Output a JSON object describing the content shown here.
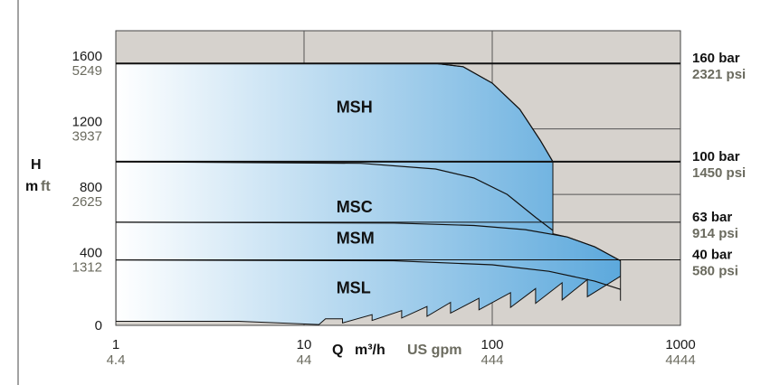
{
  "chart_data": {
    "type": "area",
    "x_scale": "log",
    "xlim": [
      1,
      1000
    ],
    "ylim": [
      0,
      1800
    ],
    "grid": true,
    "colors": {
      "plot_background": "#d6d2cd",
      "area_light": "#ffffff",
      "area_dark": "#5ba8dc",
      "line": "#111111"
    },
    "y_ticks": [
      {
        "m": "0",
        "ft": "",
        "value": 0
      },
      {
        "m": "400",
        "ft": "1312",
        "value": 400
      },
      {
        "m": "800",
        "ft": "2625",
        "value": 800
      },
      {
        "m": "1200",
        "ft": "3937",
        "value": 1200
      },
      {
        "m": "1600",
        "ft": "5249",
        "value": 1600
      }
    ],
    "x_ticks": [
      {
        "m3h": "1",
        "gpm": "4.4",
        "value": 1
      },
      {
        "m3h": "10",
        "gpm": "44",
        "value": 10
      },
      {
        "m3h": "100",
        "gpm": "444",
        "value": 100
      },
      {
        "m3h": "1000",
        "gpm": "4444",
        "value": 1000
      }
    ],
    "y_label": {
      "h": "H",
      "m": "m",
      "ft": "ft"
    },
    "x_label": {
      "q": "Q",
      "unit": "m³/h",
      "alt_unit": "US gpm"
    },
    "pressure_lines": [
      {
        "bar": "160 bar",
        "psi": "2321 psi",
        "value": 1600
      },
      {
        "bar": "100 bar",
        "psi": "1450 psi",
        "value": 1000
      },
      {
        "bar": "63 bar",
        "psi": "914 psi",
        "value": 630
      },
      {
        "bar": "40 bar",
        "psi": "580 psi",
        "value": 400
      }
    ],
    "regions": [
      {
        "name": "MSH",
        "head": 1600,
        "x_label": 13,
        "y_label": 1300,
        "curve": [
          [
            1,
            1600
          ],
          [
            50,
            1600
          ],
          [
            70,
            1580
          ],
          [
            100,
            1480
          ],
          [
            140,
            1320
          ],
          [
            180,
            1130
          ],
          [
            210,
            1000
          ]
        ]
      },
      {
        "name": "MSC",
        "head": 1000,
        "x_label": 13,
        "y_label": 690,
        "curve": [
          [
            1,
            1000
          ],
          [
            20,
            990
          ],
          [
            50,
            955
          ],
          [
            80,
            900
          ],
          [
            120,
            800
          ],
          [
            170,
            660
          ],
          [
            210,
            580
          ]
        ]
      },
      {
        "name": "MSM",
        "head": 630,
        "x_label": 13,
        "y_label": 500,
        "curve": [
          [
            1,
            630
          ],
          [
            30,
            625
          ],
          [
            80,
            610
          ],
          [
            150,
            585
          ],
          [
            250,
            540
          ],
          [
            350,
            480
          ],
          [
            480,
            395
          ]
        ]
      },
      {
        "name": "MSL",
        "head": 400,
        "x_label": 13,
        "y_label": 195,
        "curve": [
          [
            1,
            400
          ],
          [
            30,
            395
          ],
          [
            100,
            370
          ],
          [
            200,
            330
          ],
          [
            350,
            270
          ],
          [
            480,
            220
          ]
        ]
      }
    ],
    "outline": {
      "right_edge": [
        [
          210,
          1000
        ],
        [
          210,
          560
        ]
      ],
      "msl_right_edge": [
        [
          480,
          395
        ],
        [
          480,
          220
        ],
        [
          480,
          150
        ]
      ],
      "bottom_steps": [
        [
          1,
          25
        ],
        [
          4.5,
          25
        ],
        [
          12,
          5
        ],
        [
          13,
          40
        ],
        [
          16,
          40
        ],
        [
          16,
          15
        ],
        [
          23,
          65
        ],
        [
          23,
          30
        ],
        [
          33,
          90
        ],
        [
          33,
          45
        ],
        [
          45,
          115
        ],
        [
          45,
          55
        ],
        [
          60,
          140
        ],
        [
          60,
          75
        ],
        [
          85,
          165
        ],
        [
          85,
          95
        ],
        [
          125,
          200
        ],
        [
          125,
          110
        ],
        [
          170,
          225
        ],
        [
          170,
          135
        ],
        [
          235,
          260
        ],
        [
          235,
          155
        ],
        [
          320,
          280
        ],
        [
          320,
          175
        ],
        [
          480,
          300
        ],
        [
          480,
          150
        ]
      ]
    }
  }
}
